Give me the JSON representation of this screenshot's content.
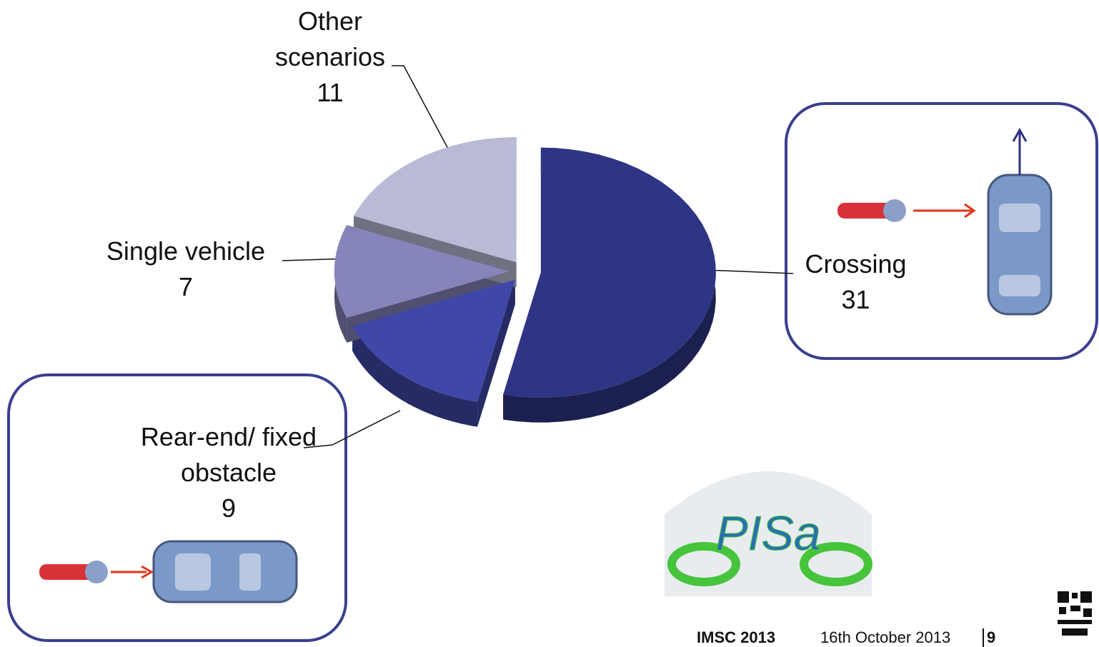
{
  "chart_data": {
    "type": "pie",
    "categories": [
      "Crossing",
      "Rear-end/ fixed obstacle",
      "Single vehicle",
      "Other scenarios"
    ],
    "values": [
      31,
      9,
      7,
      11
    ],
    "colors": [
      "#2e3585",
      "#3f48a8",
      "#8584bb",
      "#b9bad6"
    ]
  },
  "logo": {
    "text": "PISa"
  },
  "footer": {
    "event": "IMSC 2013",
    "date": "16th October 2013",
    "page": "9"
  }
}
